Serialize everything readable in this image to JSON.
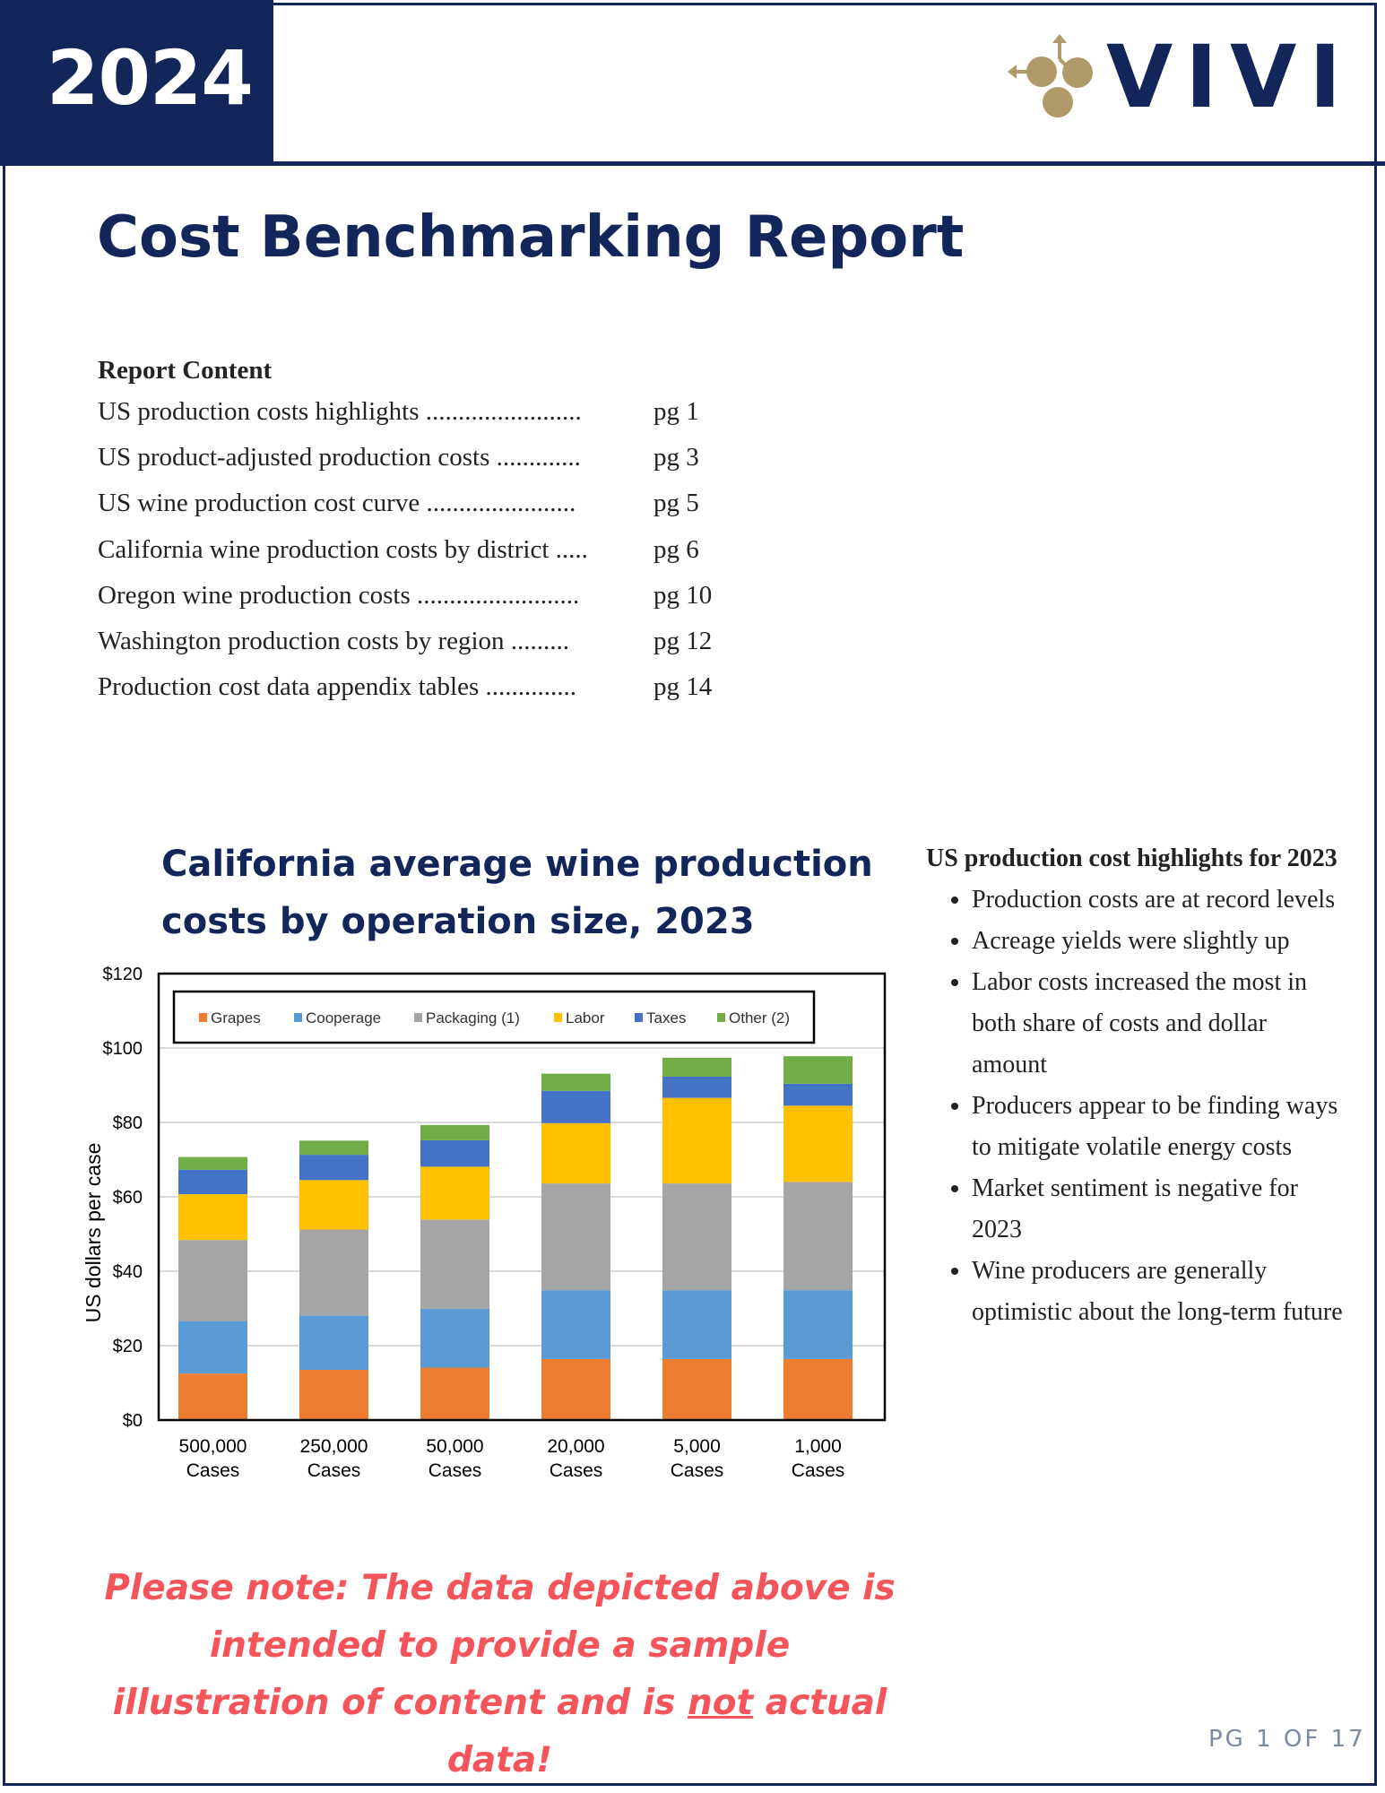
{
  "header": {
    "year": "2024",
    "logo_text": "VIVI"
  },
  "title": "Cost Benchmarking Report",
  "toc": {
    "heading": "Report Content",
    "items": [
      {
        "label": "US production costs highlights ........................",
        "page": "pg 1"
      },
      {
        "label": "US product-adjusted production costs .............",
        "page": "pg 3"
      },
      {
        "label": "US wine production cost curve  .......................",
        "page": "pg 5"
      },
      {
        "label": "California wine production costs by district .....",
        "page": "pg 6"
      },
      {
        "label": "Oregon wine production costs .........................",
        "page": "pg 10"
      },
      {
        "label": "Washington production costs by region  .........",
        "page": "pg 12"
      },
      {
        "label": "Production cost data appendix tables  ..............",
        "page": "pg 14"
      }
    ]
  },
  "chart_title_line1": "California average wine production",
  "chart_title_line2": "costs by operation size, 2023",
  "chart_data": {
    "type": "bar",
    "stacked": true,
    "title": "California average wine production costs by operation size, 2023",
    "xlabel": "",
    "ylabel": "US dollars per case",
    "ylim": [
      0,
      120
    ],
    "yticks": [
      "$0",
      "$20",
      "$40",
      "$60",
      "$80",
      "$100",
      "$120"
    ],
    "legend_position": "top",
    "categories": [
      [
        "500,000",
        "Cases"
      ],
      [
        "250,000",
        "Cases"
      ],
      [
        "50,000",
        "Cases"
      ],
      [
        "20,000",
        "Cases"
      ],
      [
        "5,000",
        "Cases"
      ],
      [
        "1,000",
        "Cases"
      ]
    ],
    "series": [
      {
        "name": "Grapes",
        "color": "#ed7d31",
        "values": [
          12.5,
          13.5,
          14.1,
          16.4,
          16.4,
          16.4
        ]
      },
      {
        "name": "Cooperage",
        "color": "#5b9bd5",
        "values": [
          14.1,
          14.6,
          15.8,
          18.5,
          18.5,
          18.5
        ]
      },
      {
        "name": "Packaging (1)",
        "color": "#a5a5a5",
        "values": [
          21.8,
          23.1,
          24.0,
          28.7,
          28.7,
          29.1
        ]
      },
      {
        "name": "Labor",
        "color": "#ffc000",
        "values": [
          12.3,
          13.3,
          14.2,
          16.2,
          23.0,
          20.5
        ]
      },
      {
        "name": "Taxes",
        "color": "#4472c4",
        "values": [
          6.6,
          6.8,
          7.1,
          8.7,
          5.7,
          5.9
        ]
      },
      {
        "name": "Other (2)",
        "color": "#70ad47",
        "values": [
          3.4,
          3.8,
          4.1,
          4.6,
          5.1,
          7.4
        ]
      }
    ]
  },
  "highlights": {
    "heading": "US production cost highlights for 2023",
    "items": [
      "Production costs are at record levels",
      "Acreage yields were slightly up",
      "Labor costs increased the most in both share of costs and dollar amount",
      "Producers appear to be finding ways to mitigate volatile energy costs",
      "Market sentiment is negative for 2023",
      "Wine producers are generally optimistic about the long-term future"
    ]
  },
  "note": {
    "before": "Please note: The data depicted above is intended to provide a sample illustration of content and is ",
    "underlined": "not",
    "after": " actual data!"
  },
  "page_number": "PG 1 OF 17",
  "colors": {
    "navy": "#13265a",
    "gold": "#b09a6a",
    "note_red": "#f4545a"
  }
}
